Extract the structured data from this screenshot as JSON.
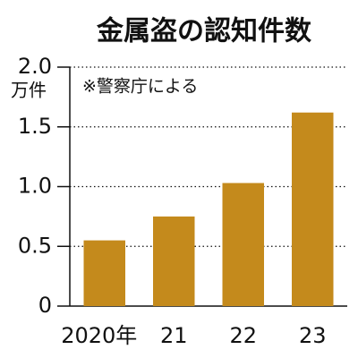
{
  "chart_data": {
    "type": "bar",
    "title": "金属盗の認知件数",
    "y_label": "万件",
    "note": "※警察庁による",
    "categories": [
      "2020年",
      "21",
      "22",
      "23"
    ],
    "values": [
      0.55,
      0.75,
      1.03,
      1.62
    ],
    "color": "#c48a1c",
    "ylim": [
      0,
      2.0
    ],
    "yticks": [
      0,
      0.5,
      {
        "value": 1.0,
        "label": "1.0"
      },
      1.5,
      {
        "value": 2.0,
        "label": "2.0"
      }
    ],
    "grid": true
  }
}
